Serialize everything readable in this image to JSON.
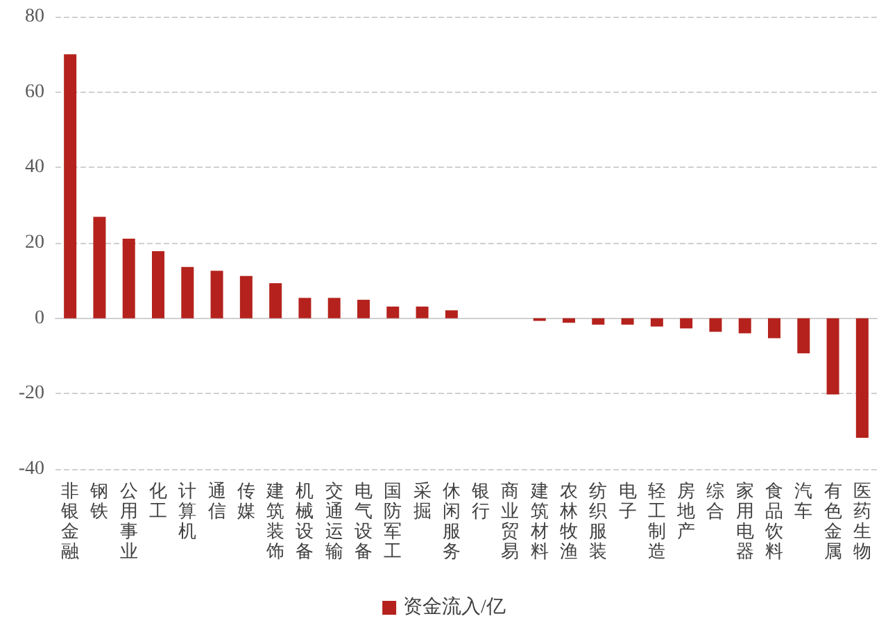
{
  "chart_data": {
    "type": "bar",
    "categories": [
      "非银金融",
      "钢铁",
      "公用事业",
      "化工",
      "计算机",
      "通信",
      "传媒",
      "建筑装饰",
      "机械设备",
      "交通运输",
      "电气设备",
      "国防军工",
      "采掘",
      "休闲服务",
      "银行",
      "商业贸易",
      "建筑材料",
      "农林牧渔",
      "纺织服装",
      "电子",
      "轻工制造",
      "房地产",
      "综合",
      "家用电器",
      "食品饮料",
      "汽车",
      "有色金属",
      "医药生物"
    ],
    "series": [
      {
        "name": "资金流入/亿",
        "color": "#b5221d",
        "values": [
          70,
          26.9,
          21.1,
          17.8,
          13.6,
          12.6,
          11.2,
          9.3,
          5.4,
          5.4,
          4.9,
          3.1,
          3.1,
          2.1,
          0,
          0,
          -0.7,
          -1.2,
          -1.7,
          -1.7,
          -2.2,
          -2.7,
          -3.6,
          -4,
          -5.3,
          -9.3,
          -20.2,
          -31.7
        ]
      }
    ],
    "ylim": [
      -40,
      80
    ],
    "yticks": [
      -40,
      -20,
      0,
      20,
      40,
      60,
      80
    ],
    "grid": "y",
    "legend": "bottom"
  }
}
